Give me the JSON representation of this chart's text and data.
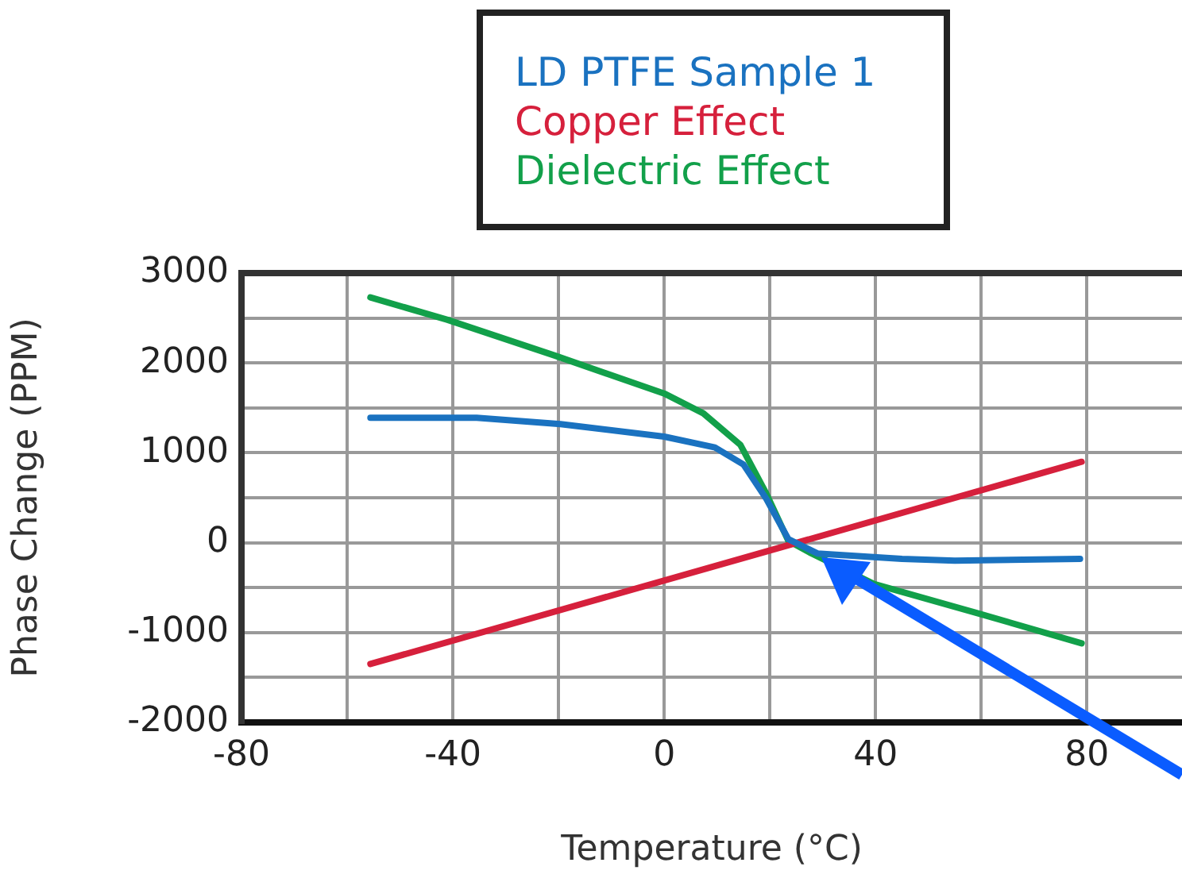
{
  "chart_data": {
    "type": "line",
    "xlabel": "Temperature (°C)",
    "ylabel": "Phase Change (PPM)",
    "xlim": [
      -80,
      98
    ],
    "xticks": [
      -80,
      {
        "value": -60,
        "label": null
      },
      -40,
      {
        "value": -20,
        "label": null
      },
      0,
      {
        "value": 20,
        "label": null
      },
      40,
      {
        "value": 60,
        "label": null
      },
      80
    ],
    "ylim": [
      -2000,
      3000
    ],
    "yticks": [
      -2000,
      {
        "value": -1500,
        "label": null
      },
      -1000,
      {
        "value": -500,
        "label": null
      },
      0,
      {
        "value": 500,
        "label": null
      },
      1000,
      {
        "value": 1500,
        "label": null
      },
      2000,
      {
        "value": 2500,
        "label": null
      },
      3000
    ],
    "grid": true,
    "legend": "top",
    "marker": "none",
    "line_style": "solid",
    "series": [
      {
        "name": "LD PTFE Sample 1",
        "color": "#1a72c0",
        "x": [
          -55.6,
          -35.5,
          -19.6,
          0,
          9.6,
          15,
          19.3,
          23.5,
          29,
          45,
          55,
          78.7
        ],
        "values": [
          1390,
          1390,
          1320,
          1180,
          1060,
          870,
          490,
          40,
          -120,
          -180,
          -200,
          -180
        ]
      },
      {
        "name": "Copper Effect",
        "color": "#d6203c",
        "x": [
          -55.6,
          79
        ],
        "values": [
          -1350,
          900
        ]
      },
      {
        "name": "Dielectric Effect",
        "color": "#12a04a",
        "x": [
          -55.6,
          -41,
          -20.6,
          0,
          7.4,
          14.4,
          19.3,
          23.5,
          27.9,
          39.7,
          59,
          79
        ],
        "values": [
          2730,
          2480,
          2080,
          1660,
          1440,
          1090,
          550,
          20,
          -120,
          -460,
          -780,
          -1120
        ]
      }
    ]
  }
}
